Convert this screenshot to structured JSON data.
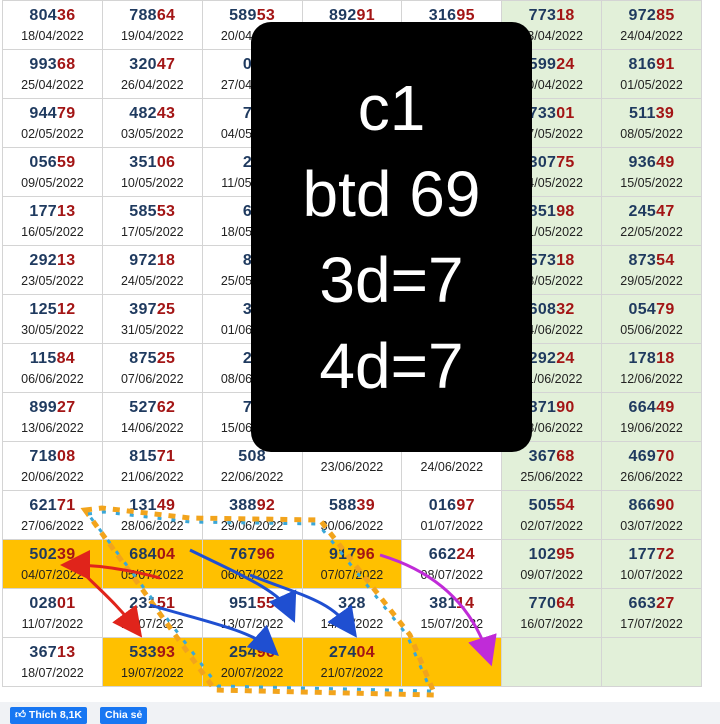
{
  "rows": [
    [
      {
        "p": "804",
        "s": "36",
        "d": "18/04/2022"
      },
      {
        "p": "788",
        "s": "64",
        "d": "19/04/2022"
      },
      {
        "p": "589",
        "s": "53",
        "d": "20/04/2022"
      },
      {
        "p": "892",
        "s": "91",
        "d": "21/04/2022"
      },
      {
        "p": "316",
        "s": "95",
        "d": "22/04/2022"
      },
      {
        "p": "773",
        "s": "18",
        "d": "23/04/2022"
      },
      {
        "p": "972",
        "s": "85",
        "d": "24/04/2022"
      }
    ],
    [
      {
        "p": "993",
        "s": "68",
        "d": "25/04/2022"
      },
      {
        "p": "320",
        "s": "47",
        "d": "26/04/2022"
      },
      {
        "p": "02",
        "s": "",
        "d": "27/04/2022"
      },
      {
        "p": "",
        "s": "",
        "d": ""
      },
      {
        "p": "",
        "s": "",
        "d": ""
      },
      {
        "p": "599",
        "s": "24",
        "d": "30/04/2022"
      },
      {
        "p": "816",
        "s": "91",
        "d": "01/05/2022"
      }
    ],
    [
      {
        "p": "944",
        "s": "79",
        "d": "02/05/2022"
      },
      {
        "p": "482",
        "s": "43",
        "d": "03/05/2022"
      },
      {
        "p": "79",
        "s": "",
        "d": "04/05/2022"
      },
      {
        "p": "",
        "s": "",
        "d": ""
      },
      {
        "p": "",
        "s": "",
        "d": ""
      },
      {
        "p": "733",
        "s": "01",
        "d": "07/05/2022"
      },
      {
        "p": "511",
        "s": "39",
        "d": "08/05/2022"
      }
    ],
    [
      {
        "p": "056",
        "s": "59",
        "d": "09/05/2022"
      },
      {
        "p": "351",
        "s": "06",
        "d": "10/05/2022"
      },
      {
        "p": "27",
        "s": "",
        "d": "11/05/2022"
      },
      {
        "p": "",
        "s": "",
        "d": ""
      },
      {
        "p": "",
        "s": "",
        "d": ""
      },
      {
        "p": "307",
        "s": "75",
        "d": "14/05/2022"
      },
      {
        "p": "936",
        "s": "49",
        "d": "15/05/2022"
      }
    ],
    [
      {
        "p": "177",
        "s": "13",
        "d": "16/05/2022"
      },
      {
        "p": "585",
        "s": "53",
        "d": "17/05/2022"
      },
      {
        "p": "69",
        "s": "",
        "d": "18/05/2022"
      },
      {
        "p": "",
        "s": "",
        "d": ""
      },
      {
        "p": "",
        "s": "",
        "d": ""
      },
      {
        "p": "851",
        "s": "98",
        "d": "21/05/2022"
      },
      {
        "p": "245",
        "s": "47",
        "d": "22/05/2022"
      }
    ],
    [
      {
        "p": "292",
        "s": "13",
        "d": "23/05/2022"
      },
      {
        "p": "972",
        "s": "18",
        "d": "24/05/2022"
      },
      {
        "p": "87",
        "s": "",
        "d": "25/05/2022"
      },
      {
        "p": "",
        "s": "",
        "d": ""
      },
      {
        "p": "",
        "s": "",
        "d": ""
      },
      {
        "p": "573",
        "s": "18",
        "d": "28/05/2022"
      },
      {
        "p": "873",
        "s": "54",
        "d": "29/05/2022"
      }
    ],
    [
      {
        "p": "125",
        "s": "12",
        "d": "30/05/2022"
      },
      {
        "p": "397",
        "s": "25",
        "d": "31/05/2022"
      },
      {
        "p": "31",
        "s": "",
        "d": "01/06/2022"
      },
      {
        "p": "",
        "s": "",
        "d": ""
      },
      {
        "p": "",
        "s": "",
        "d": ""
      },
      {
        "p": "608",
        "s": "32",
        "d": "04/06/2022"
      },
      {
        "p": "054",
        "s": "79",
        "d": "05/06/2022"
      }
    ],
    [
      {
        "p": "115",
        "s": "84",
        "d": "06/06/2022"
      },
      {
        "p": "875",
        "s": "25",
        "d": "07/06/2022"
      },
      {
        "p": "28",
        "s": "",
        "d": "08/06/2022"
      },
      {
        "p": "",
        "s": "",
        "d": ""
      },
      {
        "p": "",
        "s": "",
        "d": ""
      },
      {
        "p": "292",
        "s": "24",
        "d": "11/06/2022"
      },
      {
        "p": "178",
        "s": "18",
        "d": "12/06/2022"
      }
    ],
    [
      {
        "p": "899",
        "s": "27",
        "d": "13/06/2022"
      },
      {
        "p": "527",
        "s": "62",
        "d": "14/06/2022"
      },
      {
        "p": "79",
        "s": "",
        "d": "15/06/2022"
      },
      {
        "p": "",
        "s": "",
        "d": ""
      },
      {
        "p": "",
        "s": "",
        "d": ""
      },
      {
        "p": "871",
        "s": "90",
        "d": "18/06/2022"
      },
      {
        "p": "664",
        "s": "49",
        "d": "19/06/2022"
      }
    ],
    [
      {
        "p": "718",
        "s": "08",
        "d": "20/06/2022"
      },
      {
        "p": "815",
        "s": "71",
        "d": "21/06/2022"
      },
      {
        "p": "508",
        "s": "",
        "d": "22/06/2022"
      },
      {
        "p": "",
        "s": "",
        "d": "23/06/2022"
      },
      {
        "p": "",
        "s": "",
        "d": "24/06/2022"
      },
      {
        "p": "367",
        "s": "68",
        "d": "25/06/2022"
      },
      {
        "p": "469",
        "s": "70",
        "d": "26/06/2022"
      }
    ],
    [
      {
        "p": "621",
        "s": "71",
        "d": "27/06/2022"
      },
      {
        "p": "131",
        "s": "49",
        "d": "28/06/2022"
      },
      {
        "p": "388",
        "s": "92",
        "d": "29/06/2022"
      },
      {
        "p": "588",
        "s": "39",
        "d": "30/06/2022"
      },
      {
        "p": "016",
        "s": "97",
        "d": "01/07/2022"
      },
      {
        "p": "505",
        "s": "54",
        "d": "02/07/2022"
      },
      {
        "p": "866",
        "s": "90",
        "d": "03/07/2022"
      }
    ],
    [
      {
        "p": "502",
        "s": "39",
        "d": "04/07/2022"
      },
      {
        "p": "684",
        "s": "04",
        "d": "05/07/2022"
      },
      {
        "p": "767",
        "s": "96",
        "d": "06/07/2022"
      },
      {
        "p": "917",
        "s": "96",
        "d": "07/07/2022"
      },
      {
        "p": "662",
        "s": "24",
        "d": "08/07/2022"
      },
      {
        "p": "102",
        "s": "95",
        "d": "09/07/2022"
      },
      {
        "p": "177",
        "s": "72",
        "d": "10/07/2022"
      }
    ],
    [
      {
        "p": "028",
        "s": "01",
        "d": "11/07/2022"
      },
      {
        "p": "231",
        "s": "51",
        "d": "12/07/2022"
      },
      {
        "p": "951",
        "s": "55",
        "d": "13/07/2022"
      },
      {
        "p": "328",
        "s": "",
        "d": "14/07/2022"
      },
      {
        "p": "381",
        "s": "14",
        "d": "15/07/2022"
      },
      {
        "p": "770",
        "s": "64",
        "d": "16/07/2022"
      },
      {
        "p": "663",
        "s": "27",
        "d": "17/07/2022"
      }
    ],
    [
      {
        "p": "367",
        "s": "13",
        "d": "18/07/2022"
      },
      {
        "p": "533",
        "s": "93",
        "d": "19/07/2022"
      },
      {
        "p": "254",
        "s": "96",
        "d": "20/07/2022"
      },
      {
        "p": "274",
        "s": "04",
        "d": "21/07/2022"
      },
      {
        "p": "",
        "s": "",
        "d": ""
      },
      {
        "p": "",
        "s": "",
        "d": ""
      },
      {
        "p": "",
        "s": "",
        "d": ""
      }
    ]
  ],
  "green_cols": [
    5,
    6
  ],
  "highlight_cells": [
    [
      11,
      0
    ],
    [
      11,
      1
    ],
    [
      11,
      2
    ],
    [
      11,
      3
    ],
    [
      13,
      1
    ],
    [
      13,
      2
    ],
    [
      13,
      3
    ],
    [
      13,
      4
    ]
  ],
  "overlay_lines": [
    "c1",
    "btd 69",
    "3d=7",
    "4d=7"
  ],
  "footer": {
    "like_label": "Thích 8,1K",
    "share_label": "Chia sẻ"
  },
  "colors": {
    "prefix": "#1f3a5f",
    "suffix": "#a31515",
    "highlight": "#ffc000",
    "green_cell": "#e2f0d9",
    "overlay_bg": "#000000",
    "fb_button": "#1877f2"
  }
}
